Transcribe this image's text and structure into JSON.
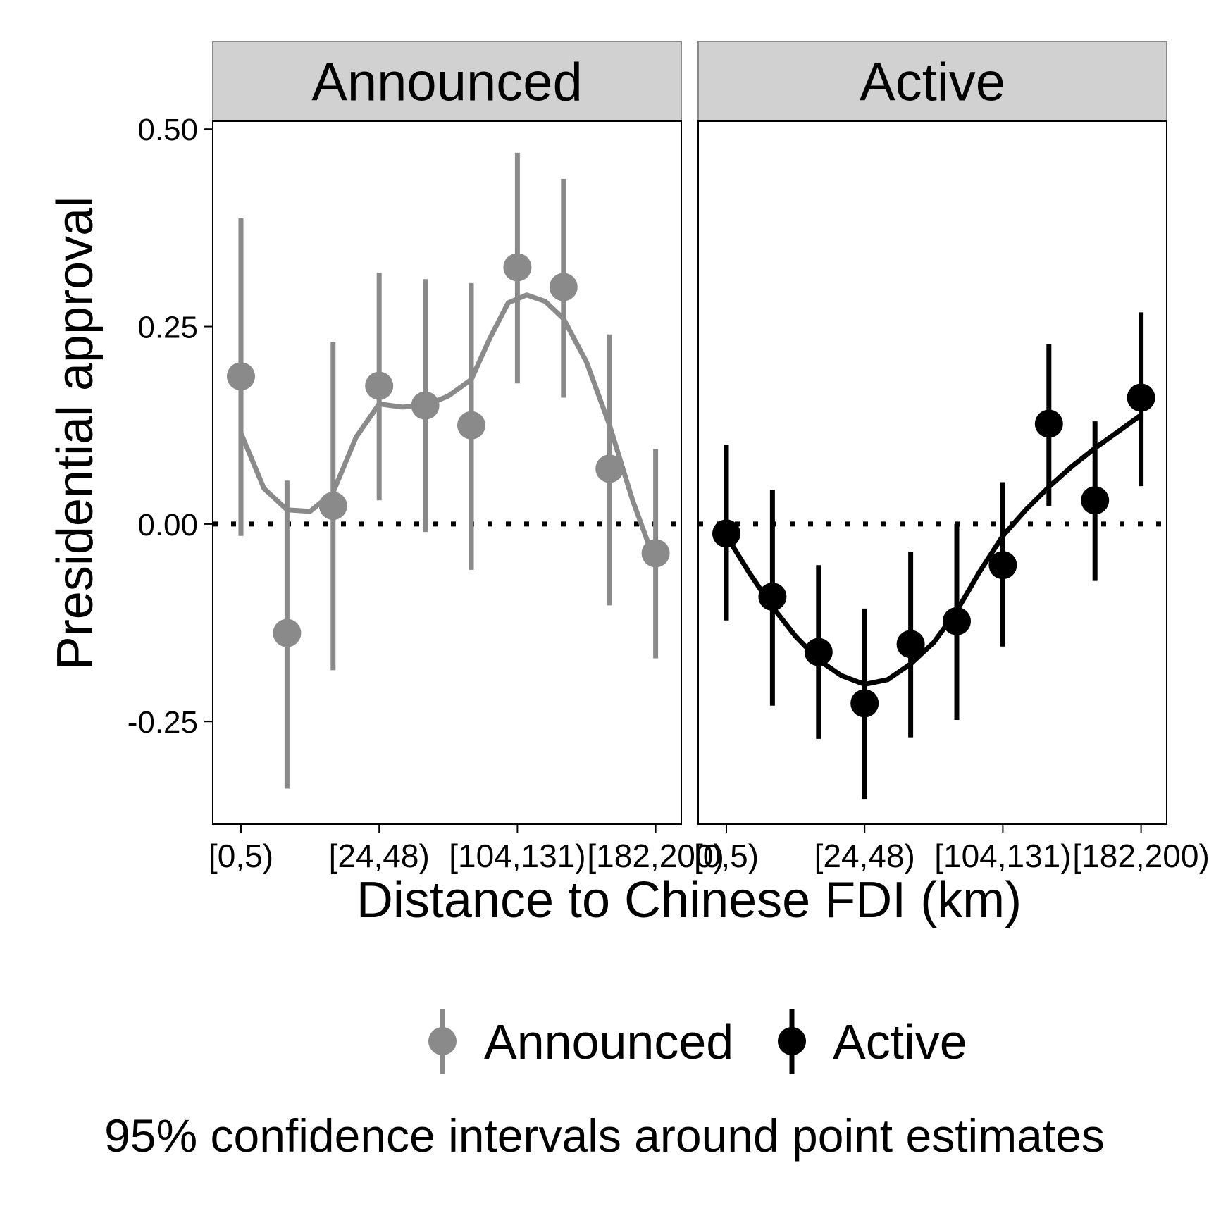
{
  "chart_data": {
    "type": "scatter",
    "ylabel": "Presidential approval",
    "xlabel": "Distance to Chinese FDI (km)",
    "caption": "95% confidence intervals around point estimates",
    "ylim": [
      -0.38,
      0.51
    ],
    "yticks": [
      0.5,
      0.25,
      0.0,
      -0.25
    ],
    "ytick_labels": [
      "0.50",
      "0.25",
      "0.00",
      "-0.25"
    ],
    "x_tick_positions": [
      1,
      4,
      7,
      10
    ],
    "x_tick_labels": [
      "[0,5)",
      "[24,48)",
      "[104,131)",
      "[182,200)"
    ],
    "reference_line": {
      "y": 0,
      "style": "dotted"
    },
    "colors": {
      "Announced": "#8a8a8a",
      "Active": "#000000"
    },
    "legend": [
      "Announced",
      "Active"
    ],
    "panels": [
      {
        "name": "Announced",
        "points": [
          {
            "x": 1,
            "y": 0.187,
            "lo": -0.015,
            "hi": 0.387
          },
          {
            "x": 2,
            "y": -0.138,
            "lo": -0.335,
            "hi": 0.055
          },
          {
            "x": 3,
            "y": 0.023,
            "lo": -0.185,
            "hi": 0.23
          },
          {
            "x": 4,
            "y": 0.175,
            "lo": 0.03,
            "hi": 0.318
          },
          {
            "x": 5,
            "y": 0.15,
            "lo": -0.01,
            "hi": 0.31
          },
          {
            "x": 6,
            "y": 0.125,
            "lo": -0.058,
            "hi": 0.305
          },
          {
            "x": 7,
            "y": 0.325,
            "lo": 0.178,
            "hi": 0.47
          },
          {
            "x": 8,
            "y": 0.3,
            "lo": 0.16,
            "hi": 0.437
          },
          {
            "x": 9,
            "y": 0.07,
            "lo": -0.103,
            "hi": 0.24
          },
          {
            "x": 10,
            "y": -0.037,
            "lo": -0.17,
            "hi": 0.095
          }
        ],
        "smooth": [
          [
            1,
            0.115
          ],
          [
            1.5,
            0.045
          ],
          [
            2,
            0.018
          ],
          [
            2.5,
            0.016
          ],
          [
            3,
            0.04
          ],
          [
            3.5,
            0.11
          ],
          [
            4,
            0.152
          ],
          [
            4.5,
            0.148
          ],
          [
            5,
            0.15
          ],
          [
            5.5,
            0.162
          ],
          [
            6,
            0.183
          ],
          [
            6.4,
            0.235
          ],
          [
            6.8,
            0.28
          ],
          [
            7.2,
            0.29
          ],
          [
            7.6,
            0.282
          ],
          [
            8,
            0.26
          ],
          [
            8.5,
            0.205
          ],
          [
            9,
            0.125
          ],
          [
            9.5,
            0.03
          ],
          [
            10,
            -0.05
          ]
        ]
      },
      {
        "name": "Active",
        "points": [
          {
            "x": 1,
            "y": -0.012,
            "lo": -0.122,
            "hi": 0.1
          },
          {
            "x": 2,
            "y": -0.092,
            "lo": -0.23,
            "hi": 0.043
          },
          {
            "x": 3,
            "y": -0.162,
            "lo": -0.272,
            "hi": -0.052
          },
          {
            "x": 4,
            "y": -0.227,
            "lo": -0.348,
            "hi": -0.107
          },
          {
            "x": 5,
            "y": -0.152,
            "lo": -0.27,
            "hi": -0.035
          },
          {
            "x": 6,
            "y": -0.123,
            "lo": -0.248,
            "hi": 0.0
          },
          {
            "x": 7,
            "y": -0.052,
            "lo": -0.155,
            "hi": 0.053
          },
          {
            "x": 8,
            "y": 0.127,
            "lo": 0.023,
            "hi": 0.228
          },
          {
            "x": 9,
            "y": 0.03,
            "lo": -0.072,
            "hi": 0.13
          },
          {
            "x": 10,
            "y": 0.16,
            "lo": 0.048,
            "hi": 0.268
          }
        ],
        "smooth": [
          [
            1,
            -0.015
          ],
          [
            1.5,
            -0.062
          ],
          [
            2,
            -0.105
          ],
          [
            2.5,
            -0.142
          ],
          [
            3,
            -0.172
          ],
          [
            3.5,
            -0.192
          ],
          [
            4,
            -0.203
          ],
          [
            4.5,
            -0.197
          ],
          [
            5,
            -0.177
          ],
          [
            5.5,
            -0.15
          ],
          [
            6,
            -0.11
          ],
          [
            6.5,
            -0.06
          ],
          [
            7,
            -0.015
          ],
          [
            7.5,
            0.018
          ],
          [
            8,
            0.047
          ],
          [
            8.5,
            0.073
          ],
          [
            9,
            0.096
          ],
          [
            9.5,
            0.117
          ],
          [
            10,
            0.138
          ]
        ]
      }
    ]
  }
}
